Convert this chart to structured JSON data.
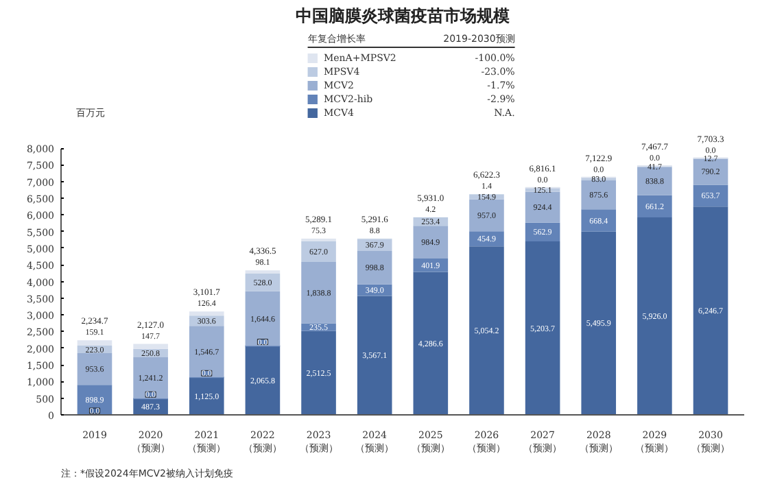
{
  "chart_data": {
    "type": "bar",
    "stacked": true,
    "title": "中国脑膜炎球菌疫苗市场规模",
    "ylabel": "百万元",
    "legend_title": "年复合增长率",
    "legend": "top",
    "categories": [
      "2019",
      "2020\n（预测）",
      "2021\n（预测）",
      "2022\n（预测）",
      "2023\n（预测）",
      "2024\n（预测）",
      "2025\n（预测）",
      "2026\n（预测）",
      "2027\n（预测）",
      "2028\n（预测）",
      "2029\n（预测）",
      "2030\n（预测）"
    ],
    "series": [
      {
        "name": "MCV4",
        "color": "#44679e",
        "values": [
          0.0,
          487.3,
          1125.0,
          2065.8,
          2512.5,
          3567.1,
          4286.6,
          5054.2,
          5203.7,
          5495.9,
          5926.0,
          6246.7
        ],
        "value_labels": [
          "0.0",
          "487.3",
          "1,125.0",
          "2,065.8",
          "2,512.5",
          "3,567.1",
          "4,286.6",
          "5,054.2",
          "5,203.7",
          "5,495.9",
          "5,926.0",
          "6,246.7"
        ]
      },
      {
        "name": "MCV2-hib",
        "color": "#6283b8",
        "values": [
          898.9,
          0.0,
          0.0,
          0.0,
          235.5,
          349.0,
          401.9,
          454.9,
          562.9,
          668.4,
          661.2,
          653.7
        ],
        "value_labels": [
          "898.9",
          "0.0",
          "0.0",
          "0.0",
          "235.5",
          "349.0",
          "401.9",
          "454.9",
          "562.9",
          "668.4",
          "661.2",
          "653.7"
        ]
      },
      {
        "name": "MCV2",
        "color": "#9aafd2",
        "values": [
          953.6,
          1241.2,
          1546.7,
          1644.6,
          1838.8,
          998.8,
          984.9,
          957.0,
          924.4,
          875.6,
          838.8,
          790.2
        ],
        "value_labels": [
          "953.6",
          "1,241.2",
          "1,546.7",
          "1,644.6",
          "1,838.8",
          "998.8",
          "984.9",
          "957.0",
          "924.4",
          "875.6",
          "838.8",
          "790.2"
        ]
      },
      {
        "name": "MPSV4",
        "color": "#bccbe2",
        "values": [
          223.0,
          250.8,
          303.6,
          528.0,
          627.0,
          367.9,
          253.4,
          154.9,
          125.1,
          83.0,
          41.7,
          12.7
        ],
        "value_labels": [
          "223.0",
          "250.8",
          "303.6",
          "528.0",
          "627.0",
          "367.9",
          "253.4",
          "154.9",
          "125.1",
          "83.0",
          "41.7",
          "12.7"
        ]
      },
      {
        "name": "MenA+MPSV2",
        "color": "#dfe5f0",
        "values": [
          159.1,
          147.7,
          126.4,
          98.1,
          75.3,
          8.8,
          4.2,
          1.4,
          0.0,
          0.0,
          0.0,
          0.0
        ],
        "value_labels": [
          "159.1",
          "147.7",
          "126.4",
          "98.1",
          "75.3",
          "8.8",
          "4.2",
          "1.4",
          "0.0",
          "0.0",
          "0.0",
          "0.0"
        ]
      }
    ],
    "totals": [
      "2,234.7",
      "2,127.0",
      "3,101.7",
      "4,336.5",
      "5,289.1",
      "5,291.6",
      "5,931.0",
      "6,622.3",
      "6,816.1",
      "7,122.9",
      "7,467.7",
      "7,703.3"
    ],
    "ylim": [
      0,
      8000
    ],
    "yticks": [
      {
        "value": 0,
        "label": "0"
      },
      {
        "value": 500,
        "label": "500"
      },
      {
        "value": 1000,
        "label": "1,000"
      },
      {
        "value": 1500,
        "label": "1,500"
      },
      {
        "value": 2000,
        "label": "2,000"
      },
      {
        "value": 2500,
        "label": "2,500"
      },
      {
        "value": 3000,
        "label": "3,000"
      },
      {
        "value": 3500,
        "label": "3,500"
      },
      {
        "value": 4000,
        "label": "4,000"
      },
      {
        "value": 4500,
        "label": "4,500"
      },
      {
        "value": 5000,
        "label": "5,000"
      },
      {
        "value": 5500,
        "label": "5,500"
      },
      {
        "value": 6000,
        "label": "6,000"
      },
      {
        "value": 6500,
        "label": "6,500"
      },
      {
        "value": 7000,
        "label": "7,000"
      },
      {
        "value": 7500,
        "label": "7,500"
      },
      {
        "value": 8000,
        "label": "8,000"
      }
    ],
    "annotations": [
      "2019-2030预测",
      "-100.0%",
      "-23.0%",
      "-1.7%",
      "-2.9%",
      "N.A.",
      "注：*假设2024年MCV2被纳入计划免疫"
    ]
  }
}
